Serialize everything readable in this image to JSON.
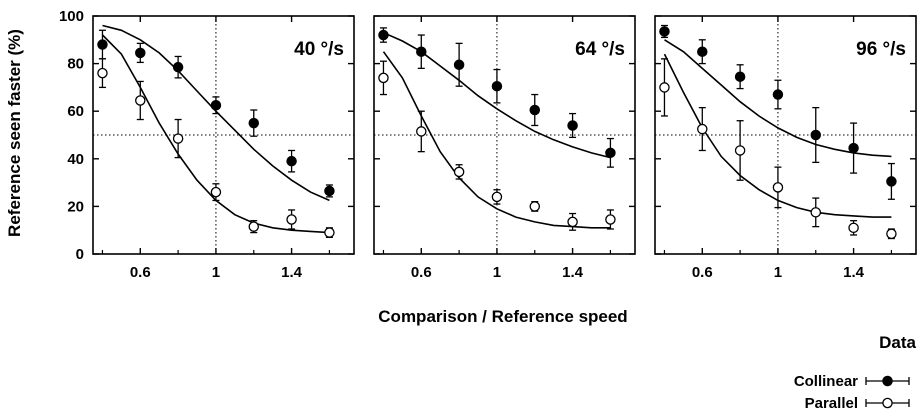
{
  "chart_data": {
    "type": "scatter",
    "ylabel": "Reference seen faster (%)",
    "xlabel": "Comparison / Reference speed",
    "legend_title": "Data",
    "legend_placement": "bottom-right",
    "xlim": [
      0.35,
      1.73
    ],
    "ylim": [
      0,
      100
    ],
    "xticks": [
      0.6,
      1,
      1.4
    ],
    "xtick_labels": [
      "0.6",
      "1",
      "1.4"
    ],
    "yticks": [
      0,
      20,
      40,
      60,
      80,
      100
    ],
    "ytick_labels": [
      "0",
      "20",
      "40",
      "60",
      "80",
      "100"
    ],
    "reference_lines": {
      "x": 1,
      "y": 50
    },
    "series_labels": [
      "Collinear",
      "Parallel"
    ],
    "panels": [
      {
        "label": "40 °/s",
        "series": [
          {
            "name": "Collinear",
            "points": [
              {
                "x": 0.4,
                "y": 88,
                "err": 6
              },
              {
                "x": 0.6,
                "y": 84.5,
                "err": 4
              },
              {
                "x": 0.8,
                "y": 78.5,
                "err": 4.5
              },
              {
                "x": 1.0,
                "y": 62.5,
                "err": 3.5
              },
              {
                "x": 1.2,
                "y": 55,
                "err": 5.5
              },
              {
                "x": 1.4,
                "y": 39,
                "err": 4.5
              },
              {
                "x": 1.6,
                "y": 26.5,
                "err": 2.5
              }
            ],
            "fit": [
              [
                0.4,
                96
              ],
              [
                0.5,
                94
              ],
              [
                0.6,
                90
              ],
              [
                0.7,
                84.5
              ],
              [
                0.8,
                77
              ],
              [
                0.9,
                68.5
              ],
              [
                1.0,
                60
              ],
              [
                1.1,
                52
              ],
              [
                1.2,
                44
              ],
              [
                1.3,
                37
              ],
              [
                1.4,
                31
              ],
              [
                1.5,
                26
              ],
              [
                1.6,
                22.5
              ]
            ]
          },
          {
            "name": "Parallel",
            "points": [
              {
                "x": 0.4,
                "y": 76,
                "err": 6
              },
              {
                "x": 0.6,
                "y": 64.5,
                "err": 8
              },
              {
                "x": 0.8,
                "y": 48.5,
                "err": 8
              },
              {
                "x": 1.0,
                "y": 26,
                "err": 3.5
              },
              {
                "x": 1.2,
                "y": 11.5,
                "err": 2.5
              },
              {
                "x": 1.4,
                "y": 14.5,
                "err": 4
              },
              {
                "x": 1.6,
                "y": 9,
                "err": 2
              }
            ],
            "fit": [
              [
                0.4,
                92
              ],
              [
                0.5,
                84
              ],
              [
                0.6,
                70
              ],
              [
                0.7,
                55
              ],
              [
                0.8,
                42
              ],
              [
                0.9,
                31
              ],
              [
                1.0,
                22.5
              ],
              [
                1.1,
                16.5
              ],
              [
                1.2,
                13
              ],
              [
                1.3,
                11
              ],
              [
                1.4,
                10
              ],
              [
                1.5,
                9.5
              ],
              [
                1.6,
                9
              ]
            ]
          }
        ]
      },
      {
        "label": "64 °/s",
        "series": [
          {
            "name": "Collinear",
            "points": [
              {
                "x": 0.4,
                "y": 92,
                "err": 3
              },
              {
                "x": 0.6,
                "y": 85,
                "err": 7
              },
              {
                "x": 0.8,
                "y": 79.5,
                "err": 9
              },
              {
                "x": 1.0,
                "y": 70.5,
                "err": 7
              },
              {
                "x": 1.2,
                "y": 60.5,
                "err": 6.5
              },
              {
                "x": 1.4,
                "y": 54,
                "err": 5
              },
              {
                "x": 1.6,
                "y": 42.5,
                "err": 6
              }
            ],
            "fit": [
              [
                0.4,
                93
              ],
              [
                0.5,
                89.5
              ],
              [
                0.6,
                85
              ],
              [
                0.7,
                79
              ],
              [
                0.8,
                73
              ],
              [
                0.9,
                66.5
              ],
              [
                1.0,
                61
              ],
              [
                1.1,
                56
              ],
              [
                1.2,
                51.5
              ],
              [
                1.3,
                48
              ],
              [
                1.4,
                45
              ],
              [
                1.5,
                42.5
              ],
              [
                1.6,
                40.5
              ]
            ]
          },
          {
            "name": "Parallel",
            "points": [
              {
                "x": 0.4,
                "y": 74,
                "err": 7
              },
              {
                "x": 0.6,
                "y": 51.5,
                "err": 8.5
              },
              {
                "x": 0.8,
                "y": 34.5,
                "err": 3
              },
              {
                "x": 1.0,
                "y": 24,
                "err": 3
              },
              {
                "x": 1.2,
                "y": 20,
                "err": 2
              },
              {
                "x": 1.4,
                "y": 13.5,
                "err": 3.5
              },
              {
                "x": 1.6,
                "y": 14.5,
                "err": 4
              }
            ],
            "fit": [
              [
                0.4,
                85
              ],
              [
                0.5,
                74
              ],
              [
                0.6,
                58
              ],
              [
                0.7,
                43
              ],
              [
                0.8,
                32
              ],
              [
                0.9,
                24
              ],
              [
                1.0,
                19
              ],
              [
                1.1,
                15.5
              ],
              [
                1.2,
                13.5
              ],
              [
                1.3,
                12
              ],
              [
                1.4,
                11.5
              ],
              [
                1.5,
                11
              ],
              [
                1.6,
                11
              ]
            ]
          }
        ]
      },
      {
        "label": "96 °/s",
        "series": [
          {
            "name": "Collinear",
            "points": [
              {
                "x": 0.4,
                "y": 93.5,
                "err": 2.5
              },
              {
                "x": 0.6,
                "y": 85,
                "err": 5
              },
              {
                "x": 0.8,
                "y": 74.5,
                "err": 5
              },
              {
                "x": 1.0,
                "y": 67,
                "err": 6
              },
              {
                "x": 1.2,
                "y": 50,
                "err": 11.5
              },
              {
                "x": 1.4,
                "y": 44.5,
                "err": 10.5
              },
              {
                "x": 1.6,
                "y": 30.5,
                "err": 7.5
              }
            ],
            "fit": [
              [
                0.4,
                90
              ],
              [
                0.5,
                85
              ],
              [
                0.6,
                78
              ],
              [
                0.7,
                71
              ],
              [
                0.8,
                64
              ],
              [
                0.9,
                58
              ],
              [
                1.0,
                53
              ],
              [
                1.1,
                49
              ],
              [
                1.2,
                46
              ],
              [
                1.3,
                44
              ],
              [
                1.4,
                42.5
              ],
              [
                1.5,
                41.5
              ],
              [
                1.6,
                41
              ]
            ]
          },
          {
            "name": "Parallel",
            "points": [
              {
                "x": 0.4,
                "y": 70,
                "err": 12
              },
              {
                "x": 0.6,
                "y": 52.5,
                "err": 9
              },
              {
                "x": 0.8,
                "y": 43.5,
                "err": 12.5
              },
              {
                "x": 1.0,
                "y": 28,
                "err": 8.5
              },
              {
                "x": 1.2,
                "y": 17.5,
                "err": 6
              },
              {
                "x": 1.4,
                "y": 11,
                "err": 3
              },
              {
                "x": 1.6,
                "y": 8.5,
                "err": 2
              }
            ],
            "fit": [
              [
                0.4,
                84
              ],
              [
                0.5,
                68
              ],
              [
                0.6,
                53
              ],
              [
                0.7,
                41
              ],
              [
                0.8,
                33
              ],
              [
                0.9,
                27
              ],
              [
                1.0,
                22.5
              ],
              [
                1.1,
                19.5
              ],
              [
                1.2,
                17.5
              ],
              [
                1.3,
                16.5
              ],
              [
                1.4,
                16
              ],
              [
                1.5,
                15.5
              ],
              [
                1.6,
                15.5
              ]
            ]
          }
        ]
      }
    ]
  }
}
